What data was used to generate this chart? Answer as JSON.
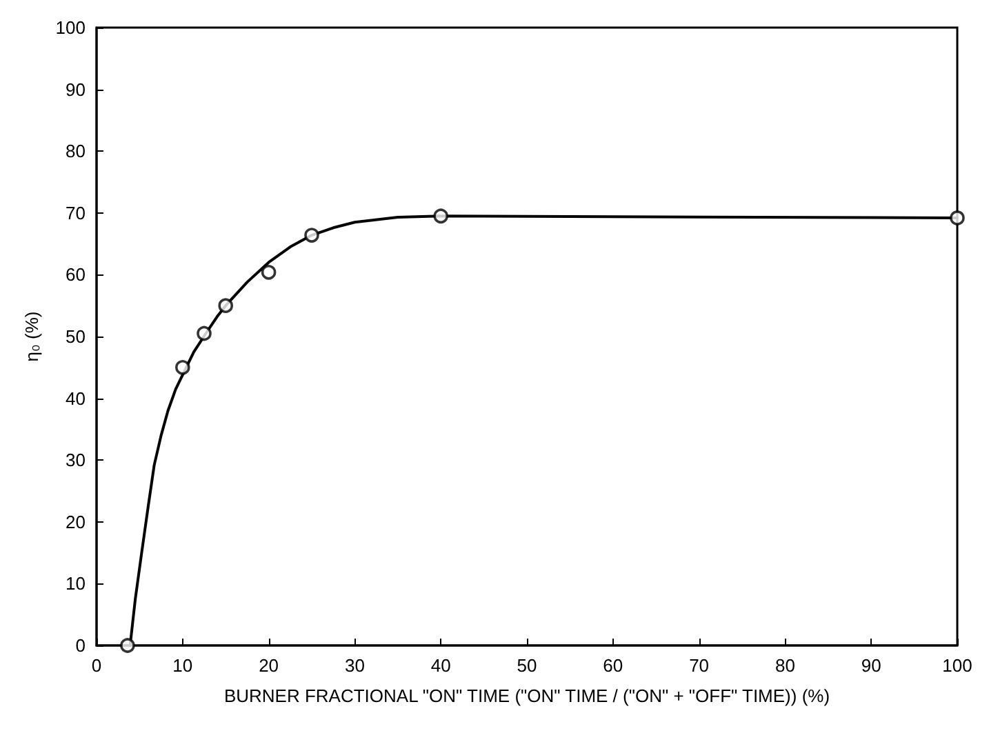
{
  "chart_data": {
    "type": "scatter",
    "xlabel": "BURNER FRACTIONAL \"ON\" TIME (\"ON\" TIME / (\"ON\" + \"OFF\" TIME)) (%)",
    "ylabel": "η₀ (%)",
    "xlim": [
      0,
      100
    ],
    "xticks": [
      0,
      10,
      20,
      30,
      40,
      50,
      60,
      70,
      80,
      90,
      100
    ],
    "ylim": [
      0,
      100
    ],
    "yticks": [
      0,
      10,
      20,
      30,
      40,
      50,
      60,
      70,
      80,
      90,
      100
    ],
    "grid": false,
    "series": [
      {
        "color": "#000000",
        "marker": "circle",
        "x": [
          3.6,
          10,
          12.5,
          15,
          20,
          25,
          40,
          100
        ],
        "values": [
          0,
          45,
          50.5,
          55,
          60.4,
          66.4,
          69.5,
          69.2
        ]
      },
      {
        "type": "line",
        "color": "#000000",
        "marker": "none",
        "line_style": "solid",
        "x": [
          3.9,
          4.5,
          5.2,
          6,
          6.7,
          7.5,
          8.3,
          9.2,
          10,
          11.3,
          12.7,
          14,
          15,
          17.5,
          20,
          22.5,
          25,
          27.5,
          30,
          35,
          40,
          100
        ],
        "values": [
          0,
          7.5,
          14.6,
          22.5,
          29.2,
          34,
          38,
          41.5,
          43.8,
          47.5,
          50.5,
          53.2,
          55,
          58.8,
          62,
          64.5,
          66.4,
          67.6,
          68.5,
          69.3,
          69.5,
          69.2
        ]
      }
    ]
  }
}
